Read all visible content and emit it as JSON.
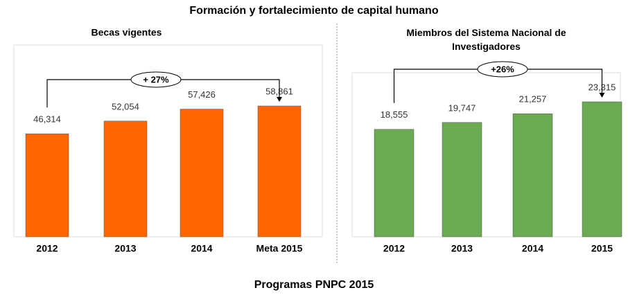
{
  "title": "Formación y fortalecimiento de capital humano",
  "footer": "Programas PNPC 2015",
  "chart_data": [
    {
      "type": "bar",
      "title": "Becas vigentes",
      "categories": [
        "2012",
        "2013",
        "2014",
        "Meta 2015"
      ],
      "values": [
        46314,
        52054,
        57426,
        58861
      ],
      "value_labels": [
        "46,314",
        "52,054",
        "57,426",
        "58,861"
      ],
      "color": "#ff6600",
      "annotation": "+ 27%"
    },
    {
      "type": "bar",
      "title": "Miembros del Sistema Nacional de Investigadores",
      "categories": [
        "2012",
        "2013",
        "2014",
        "2015"
      ],
      "values": [
        18555,
        19747,
        21257,
        23315
      ],
      "value_labels": [
        "18,555",
        "19,747",
        "21,257",
        "23,315"
      ],
      "color": "#6aaa50",
      "annotation": "+26%"
    }
  ]
}
